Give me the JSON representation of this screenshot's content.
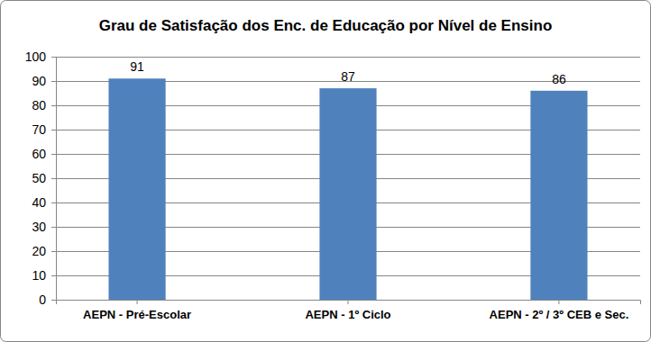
{
  "chart_data": {
    "type": "bar",
    "title": "Grau de Satisfação dos Enc. de Educação por Nível de Ensino",
    "categories": [
      "AEPN - Pré-Escolar",
      "AEPN - 1º Ciclo",
      "AEPN - 2º / 3º CEB e Sec."
    ],
    "values": [
      91,
      87,
      86
    ],
    "color": "#4f81bd",
    "ylim": [
      0,
      100
    ],
    "yticks": [
      0,
      10,
      20,
      30,
      40,
      50,
      60,
      70,
      80,
      90,
      100
    ],
    "grid": true,
    "data_labels": true
  }
}
